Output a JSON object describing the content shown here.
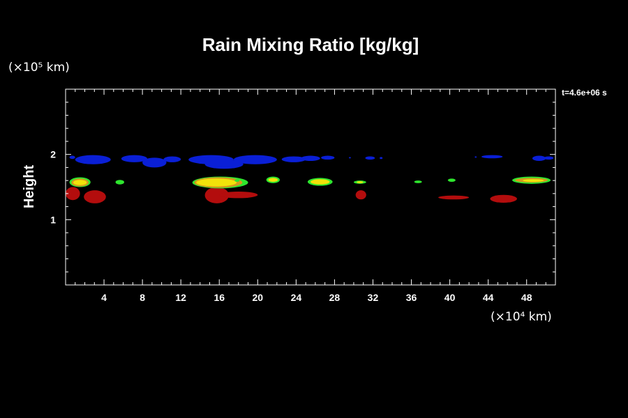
{
  "chart_data": {
    "type": "heatmap",
    "title": "Rain Mixing Ratio [kg/kg]",
    "time_label": "t=4.6e+06 s",
    "xlabel": "",
    "ylabel": "Height",
    "x_unit": "(×10⁴ km)",
    "y_unit": "(×10⁵ km)",
    "xlim": [
      0,
      51
    ],
    "ylim": [
      0,
      3
    ],
    "x_ticks": [
      "4",
      "8",
      "12",
      "16",
      "20",
      "24",
      "28",
      "32",
      "36",
      "40",
      "44",
      "48"
    ],
    "y_ticks": [
      "1",
      "2"
    ],
    "colors": {
      "blue": "#0a1fd6",
      "green": "#2ee62e",
      "yellow": "#f2e20a",
      "orange": "#d69a1e",
      "red": "#b30d0d",
      "axes": "#ffffff",
      "background": "#000000"
    },
    "regions": [
      {
        "level": "blue",
        "x": [
          0.4,
          1.0
        ],
        "y": [
          1.93,
          1.98
        ]
      },
      {
        "level": "blue",
        "x": [
          1.0,
          4.7
        ],
        "y": [
          1.85,
          1.99
        ]
      },
      {
        "level": "blue",
        "x": [
          5.8,
          8.5
        ],
        "y": [
          1.88,
          1.99
        ]
      },
      {
        "level": "blue",
        "x": [
          8.0,
          10.5
        ],
        "y": [
          1.8,
          1.95
        ]
      },
      {
        "level": "blue",
        "x": [
          10.2,
          12.0
        ],
        "y": [
          1.88,
          1.97
        ]
      },
      {
        "level": "blue",
        "x": [
          12.8,
          17.5
        ],
        "y": [
          1.85,
          1.99
        ]
      },
      {
        "level": "blue",
        "x": [
          14.5,
          18.5
        ],
        "y": [
          1.78,
          1.92
        ]
      },
      {
        "level": "blue",
        "x": [
          17.5,
          22.0
        ],
        "y": [
          1.85,
          1.99
        ]
      },
      {
        "level": "blue",
        "x": [
          22.5,
          25.0
        ],
        "y": [
          1.88,
          1.97
        ]
      },
      {
        "level": "blue",
        "x": [
          24.5,
          26.5
        ],
        "y": [
          1.9,
          1.98
        ]
      },
      {
        "level": "blue",
        "x": [
          26.6,
          28.0
        ],
        "y": [
          1.92,
          1.98
        ]
      },
      {
        "level": "blue",
        "x": [
          29.5,
          29.7
        ],
        "y": [
          1.94,
          1.96
        ]
      },
      {
        "level": "blue",
        "x": [
          31.2,
          32.2
        ],
        "y": [
          1.92,
          1.97
        ]
      },
      {
        "level": "blue",
        "x": [
          32.7,
          33.0
        ],
        "y": [
          1.93,
          1.96
        ]
      },
      {
        "level": "blue",
        "x": [
          42.6,
          42.8
        ],
        "y": [
          1.95,
          1.97
        ]
      },
      {
        "level": "blue",
        "x": [
          43.3,
          45.5
        ],
        "y": [
          1.94,
          1.99
        ]
      },
      {
        "level": "blue",
        "x": [
          48.6,
          50.0
        ],
        "y": [
          1.9,
          1.98
        ]
      },
      {
        "level": "blue",
        "x": [
          49.8,
          50.8
        ],
        "y": [
          1.92,
          1.97
        ]
      },
      {
        "level": "red",
        "x": [
          0.0,
          1.5
        ],
        "y": [
          1.3,
          1.5
        ]
      },
      {
        "level": "red",
        "x": [
          1.9,
          4.2
        ],
        "y": [
          1.25,
          1.45
        ]
      },
      {
        "level": "red",
        "x": [
          14.5,
          17.0
        ],
        "y": [
          1.25,
          1.5
        ]
      },
      {
        "level": "red",
        "x": [
          16.0,
          20.0
        ],
        "y": [
          1.33,
          1.43
        ]
      },
      {
        "level": "red",
        "x": [
          30.2,
          31.3
        ],
        "y": [
          1.31,
          1.45
        ]
      },
      {
        "level": "red",
        "x": [
          38.8,
          42.0
        ],
        "y": [
          1.31,
          1.37
        ]
      },
      {
        "level": "red",
        "x": [
          44.2,
          47.0
        ],
        "y": [
          1.26,
          1.38
        ]
      },
      {
        "level": "green",
        "x": [
          0.4,
          2.6
        ],
        "y": [
          1.5,
          1.65
        ]
      },
      {
        "level": "orange",
        "x": [
          0.6,
          2.4
        ],
        "y": [
          1.51,
          1.63
        ]
      },
      {
        "level": "yellow",
        "x": [
          0.8,
          2.2
        ],
        "y": [
          1.53,
          1.61
        ]
      },
      {
        "level": "green",
        "x": [
          5.2,
          6.1
        ],
        "y": [
          1.54,
          1.61
        ]
      },
      {
        "level": "green",
        "x": [
          13.2,
          19.0
        ],
        "y": [
          1.48,
          1.66
        ]
      },
      {
        "level": "orange",
        "x": [
          13.4,
          18.4
        ],
        "y": [
          1.49,
          1.65
        ]
      },
      {
        "level": "yellow",
        "x": [
          13.6,
          17.8
        ],
        "y": [
          1.51,
          1.63
        ]
      },
      {
        "level": "green",
        "x": [
          17.6,
          18.1
        ],
        "y": [
          1.58,
          1.62
        ]
      },
      {
        "level": "green",
        "x": [
          20.9,
          22.3
        ],
        "y": [
          1.56,
          1.66
        ]
      },
      {
        "level": "yellow",
        "x": [
          21.1,
          22.1
        ],
        "y": [
          1.58,
          1.64
        ]
      },
      {
        "level": "green",
        "x": [
          25.2,
          27.8
        ],
        "y": [
          1.52,
          1.64
        ]
      },
      {
        "level": "yellow",
        "x": [
          25.5,
          27.5
        ],
        "y": [
          1.54,
          1.62
        ]
      },
      {
        "level": "green",
        "x": [
          30.0,
          31.3
        ],
        "y": [
          1.55,
          1.6
        ]
      },
      {
        "level": "yellow",
        "x": [
          30.3,
          31.0
        ],
        "y": [
          1.56,
          1.59
        ]
      },
      {
        "level": "green",
        "x": [
          36.3,
          37.1
        ],
        "y": [
          1.56,
          1.6
        ]
      },
      {
        "level": "green",
        "x": [
          39.8,
          40.6
        ],
        "y": [
          1.58,
          1.63
        ]
      },
      {
        "level": "green",
        "x": [
          46.5,
          50.5
        ],
        "y": [
          1.55,
          1.66
        ]
      },
      {
        "level": "orange",
        "x": [
          46.8,
          50.2
        ],
        "y": [
          1.57,
          1.64
        ]
      },
      {
        "level": "yellow",
        "x": [
          47.6,
          49.8
        ],
        "y": [
          1.58,
          1.62
        ]
      }
    ]
  }
}
